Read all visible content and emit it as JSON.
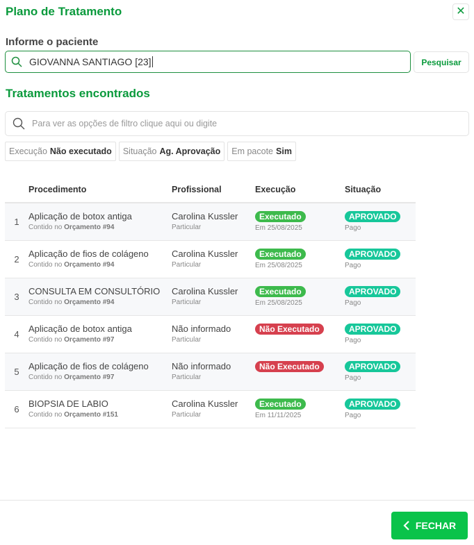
{
  "header": {
    "title": "Plano de Tratamento"
  },
  "patient": {
    "label": "Informe o paciente",
    "value": "GIOVANNA SANTIAGO [23]",
    "search_label": "Pesquisar"
  },
  "results": {
    "title": "Tratamentos encontrados",
    "filter_placeholder": "Para ver as opções de filtro clique aqui ou digite"
  },
  "chips": [
    {
      "key": "Execução",
      "value": "Não executado"
    },
    {
      "key": "Situação",
      "value": "Ag. Aprovação"
    },
    {
      "key": "Em pacote",
      "value": "Sim"
    }
  ],
  "columns": [
    "Procedimento",
    "Profissional",
    "Execução",
    "Situação"
  ],
  "rows": [
    {
      "n": "1",
      "proc": "Aplicação de botox antiga",
      "orc_prefix": "Contido no",
      "orc": "Orçamento #94",
      "prof": "Carolina Kussler",
      "conv": "Particular",
      "exec": "Executado",
      "exec_date": "Em 25/08/2025",
      "sit": "APROVADO",
      "pay": "Pago"
    },
    {
      "n": "2",
      "proc": "Aplicação de fios de colágeno",
      "orc_prefix": "Contido no",
      "orc": "Orçamento #94",
      "prof": "Carolina Kussler",
      "conv": "Particular",
      "exec": "Executado",
      "exec_date": "Em 25/08/2025",
      "sit": "APROVADO",
      "pay": "Pago"
    },
    {
      "n": "3",
      "proc": "CONSULTA EM CONSULTÓRIO",
      "orc_prefix": "Contido no",
      "orc": "Orçamento #94",
      "prof": "Carolina Kussler",
      "conv": "Particular",
      "exec": "Executado",
      "exec_date": "Em 25/08/2025",
      "sit": "APROVADO",
      "pay": "Pago"
    },
    {
      "n": "4",
      "proc": "Aplicação de botox antiga",
      "orc_prefix": "Contido no",
      "orc": "Orçamento #97",
      "prof": "Não informado",
      "conv": "Particular",
      "exec": "Não Executado",
      "exec_date": "",
      "sit": "APROVADO",
      "pay": "Pago"
    },
    {
      "n": "5",
      "proc": "Aplicação de fios de colágeno",
      "orc_prefix": "Contido no",
      "orc": "Orçamento #97",
      "prof": "Não informado",
      "conv": "Particular",
      "exec": "Não Executado",
      "exec_date": "",
      "sit": "APROVADO",
      "pay": "Pago"
    },
    {
      "n": "6",
      "proc": "BIOPSIA DE LABIO",
      "orc_prefix": "Contido no",
      "orc": "Orçamento #151",
      "prof": "Carolina Kussler",
      "conv": "Particular",
      "exec": "Executado",
      "exec_date": "Em 11/11/2025",
      "sit": "APROVADO",
      "pay": "Pago"
    }
  ],
  "colors": {
    "primary": "#0a9a3c",
    "executed": "#3dba4c",
    "not_executed": "#d6404e",
    "approved": "#17c79a",
    "button": "#0ac34a"
  },
  "footer": {
    "close_label": "FECHAR"
  }
}
